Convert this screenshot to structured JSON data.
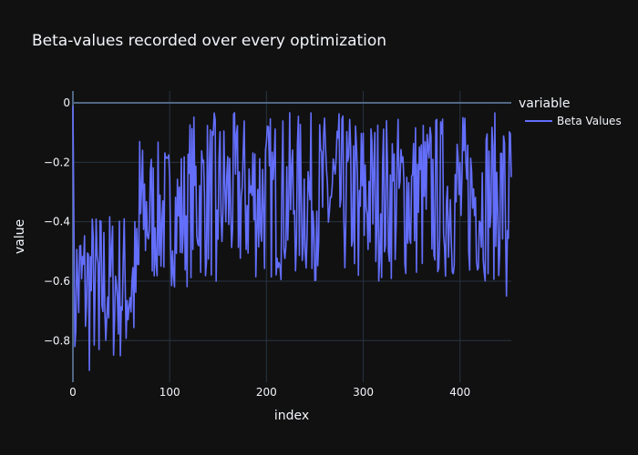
{
  "chart_data": {
    "type": "line",
    "title": "Beta-values recorded over every optimization",
    "xlabel": "index",
    "ylabel": "value",
    "xlim": [
      0,
      453
    ],
    "ylim": [
      -0.94,
      0.04
    ],
    "xticks": [
      0,
      100,
      200,
      300,
      400
    ],
    "xtick_labels": [
      "0",
      "100",
      "200",
      "300",
      "400"
    ],
    "yticks": [
      0,
      -0.2,
      -0.4,
      -0.6,
      -0.8
    ],
    "ytick_labels": [
      "0",
      "−0.2",
      "−0.4",
      "−0.6",
      "−0.8"
    ],
    "grid": true,
    "legend": {
      "title": "variable",
      "placement": "right"
    },
    "series": [
      {
        "name": "Beta Values",
        "color": "#636efa",
        "generator": {
          "n": 454,
          "seed": 7,
          "phases": [
            {
              "from": 0,
              "to": 70,
              "low": -0.88,
              "high": -0.35
            },
            {
              "from": 70,
              "to": 120,
              "low": -0.62,
              "high": -0.13
            },
            {
              "from": 120,
              "to": 454,
              "low": -0.6,
              "high": -0.03
            }
          ]
        },
        "highlights": [
          {
            "x": 0,
            "y": -0.01
          },
          {
            "x": 2,
            "y": -0.82
          },
          {
            "x": 17,
            "y": -0.9
          },
          {
            "x": 27,
            "y": -0.83
          },
          {
            "x": 69,
            "y": -0.13
          },
          {
            "x": 148,
            "y": -0.6
          },
          {
            "x": 295,
            "y": -0.58
          },
          {
            "x": 448,
            "y": -0.65
          },
          {
            "x": 453,
            "y": -0.25
          }
        ]
      }
    ]
  }
}
